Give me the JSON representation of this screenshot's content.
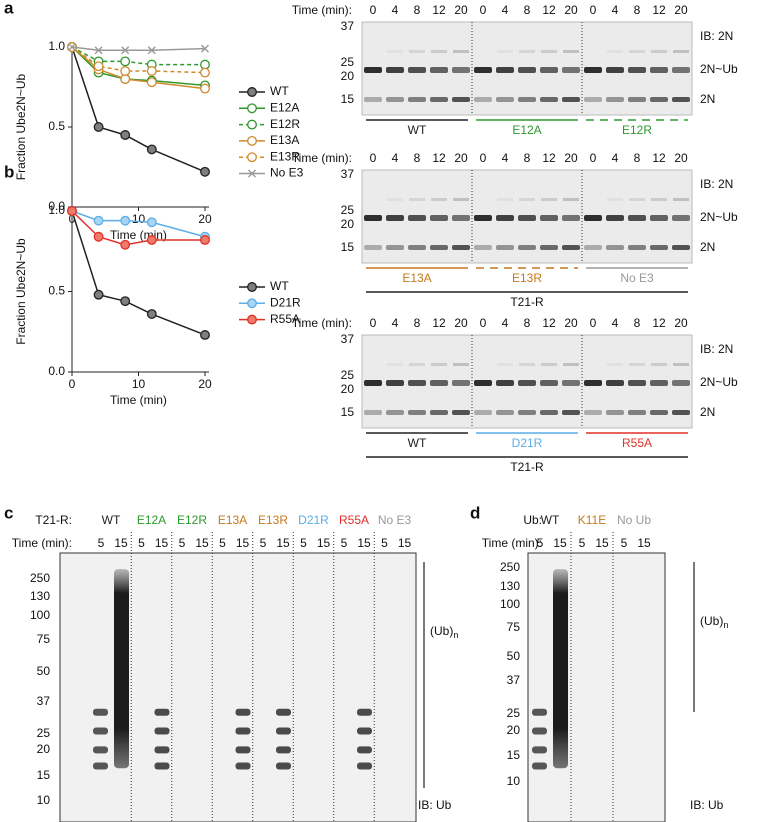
{
  "chart_data": [
    {
      "type": "line",
      "panel_label": "a",
      "ylabel": "Fraction Ube2N~Ub",
      "xlabel": "Time (min)",
      "x": [
        0,
        4,
        8,
        12,
        20
      ],
      "xlim": [
        0,
        20
      ],
      "xticks": [
        0,
        10,
        20
      ],
      "ylim": [
        0,
        1
      ],
      "yticks": [
        {
          "value": 0,
          "label": "0.0"
        },
        {
          "value": 0.5,
          "label": "0.5"
        },
        {
          "value": 1,
          "label": "1.0"
        }
      ],
      "series": [
        {
          "name": "WT",
          "color": "#222222",
          "fill": "#7f7f7f",
          "marker": "filled",
          "dash": false,
          "values": [
            1,
            0.5,
            0.45,
            0.36,
            0.22
          ]
        },
        {
          "name": "E12A",
          "color": "#2e9a2e",
          "fill": "#ffffff",
          "marker": "open",
          "dash": false,
          "values": [
            1,
            0.84,
            0.8,
            0.79,
            0.76
          ]
        },
        {
          "name": "E12R",
          "color": "#2e9a2e",
          "fill": "#ffffff",
          "marker": "open",
          "dash": true,
          "values": [
            1,
            0.91,
            0.91,
            0.89,
            0.89
          ]
        },
        {
          "name": "E13A",
          "color": "#d08a2e",
          "fill": "#ffffff",
          "marker": "open",
          "dash": false,
          "values": [
            1,
            0.86,
            0.8,
            0.78,
            0.74
          ]
        },
        {
          "name": "E13R",
          "color": "#d08a2e",
          "fill": "#ffffff",
          "marker": "open",
          "dash": true,
          "values": [
            1,
            0.88,
            0.85,
            0.85,
            0.84
          ]
        },
        {
          "name": "No E3",
          "color": "#999999",
          "fill": "#ffffff",
          "marker": "x",
          "dash": false,
          "values": [
            1,
            0.98,
            0.98,
            0.98,
            0.99
          ]
        }
      ]
    },
    {
      "type": "line",
      "panel_label": "b",
      "ylabel": "Fraction Ube2N~Ub",
      "xlabel": "Time (min)",
      "x": [
        0,
        4,
        8,
        12,
        20
      ],
      "xlim": [
        0,
        20
      ],
      "xticks": [
        0,
        10,
        20
      ],
      "ylim": [
        0,
        1
      ],
      "yticks": [
        {
          "value": 0,
          "label": "0.0"
        },
        {
          "value": 0.5,
          "label": "0.5"
        },
        {
          "value": 1,
          "label": "1.0"
        }
      ],
      "series": [
        {
          "name": "WT",
          "color": "#222222",
          "fill": "#7f7f7f",
          "marker": "filled",
          "dash": false,
          "values": [
            1,
            0.48,
            0.44,
            0.36,
            0.23
          ]
        },
        {
          "name": "D21R",
          "color": "#5aaee8",
          "fill": "#a8d4f4",
          "marker": "filled",
          "dash": false,
          "values": [
            1,
            0.94,
            0.94,
            0.93,
            0.84
          ]
        },
        {
          "name": "R55A",
          "color": "#e0302a",
          "fill": "#f07a6a",
          "marker": "filled",
          "dash": false,
          "values": [
            1,
            0.84,
            0.79,
            0.82,
            0.82
          ]
        }
      ]
    }
  ],
  "blots": [
    {
      "time_label": "Time (min):",
      "times": [
        "0",
        "4",
        "8",
        "12",
        "20"
      ],
      "markers": [
        "37",
        "25",
        "20",
        "15"
      ],
      "labels": [
        "IB: 2N",
        "2N~Ub",
        "2N"
      ],
      "groups": [
        {
          "label": "WT",
          "color": "#222222",
          "dashed": false
        },
        {
          "label": "E12A",
          "color": "#2e9a2e",
          "dashed": false
        },
        {
          "label": "E12R",
          "color": "#2e9a2e",
          "dashed": true
        }
      ]
    },
    {
      "time_label": "Time (min):",
      "times": [
        "0",
        "4",
        "8",
        "12",
        "20"
      ],
      "markers": [
        "37",
        "25",
        "20",
        "15"
      ],
      "labels": [
        "IB: 2N",
        "2N~Ub",
        "2N"
      ],
      "groups": [
        {
          "label": "E13A",
          "color": "#c8781e",
          "dashed": false
        },
        {
          "label": "E13R",
          "color": "#c8781e",
          "dashed": true
        },
        {
          "label": "No E3",
          "color": "#999999",
          "dashed": false
        }
      ],
      "base": "T21-R"
    },
    {
      "time_label": "Time (min):",
      "times": [
        "0",
        "4",
        "8",
        "12",
        "20"
      ],
      "markers": [
        "37",
        "25",
        "20",
        "15"
      ],
      "labels": [
        "IB: 2N",
        "2N~Ub",
        "2N"
      ],
      "groups": [
        {
          "label": "WT",
          "color": "#222222",
          "dashed": false
        },
        {
          "label": "D21R",
          "color": "#5aaee8",
          "dashed": false
        },
        {
          "label": "R55A",
          "color": "#e0302a",
          "dashed": false
        }
      ],
      "base": "T21-R"
    }
  ],
  "panel_c": {
    "panel_label": "c",
    "header": "T21-R:",
    "time_label": "Time (min):",
    "times": [
      "5",
      "15"
    ],
    "groups": [
      {
        "label": "WT",
        "color": "#222222"
      },
      {
        "label": "E12A",
        "color": "#2e9a2e"
      },
      {
        "label": "E12R",
        "color": "#2e9a2e"
      },
      {
        "label": "E13A",
        "color": "#c8781e"
      },
      {
        "label": "E13R",
        "color": "#c8781e"
      },
      {
        "label": "D21R",
        "color": "#5aaee8"
      },
      {
        "label": "R55A",
        "color": "#e0302a"
      },
      {
        "label": "No E3",
        "color": "#999999"
      }
    ],
    "markers": [
      "250",
      "130",
      "100",
      "75",
      "50",
      "37",
      "25",
      "20",
      "15",
      "10"
    ],
    "product": "(Ub)",
    "product_sub": "n",
    "ib": "IB: Ub"
  },
  "panel_d": {
    "panel_label": "d",
    "header": "Ub:",
    "time_label": "Time (min):",
    "times": [
      "5",
      "15"
    ],
    "groups": [
      {
        "label": "WT",
        "color": "#222222"
      },
      {
        "label": "K11E",
        "color": "#c8781e"
      },
      {
        "label": "No Ub",
        "color": "#999999"
      }
    ],
    "markers": [
      "250",
      "130",
      "100",
      "75",
      "50",
      "37",
      "25",
      "20",
      "15",
      "10"
    ],
    "product": "(Ub)",
    "product_sub": "n",
    "ib": "IB: Ub"
  }
}
